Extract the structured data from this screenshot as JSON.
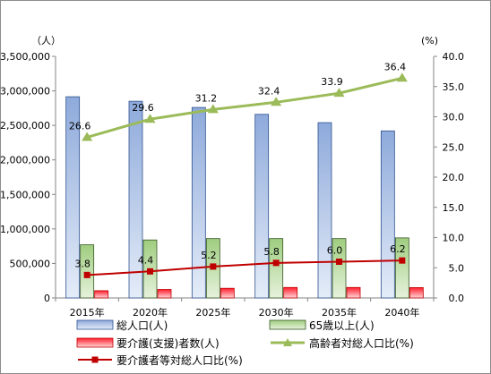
{
  "chart_data": {
    "type": "bar",
    "left_axis_unit": "（人）",
    "right_axis_unit": "(%)",
    "categories": [
      "2015年",
      "2020年",
      "2025年",
      "2030年",
      "2035年",
      "2040年"
    ],
    "left_axis": {
      "ylim": [
        0,
        3500000
      ],
      "ticks": [
        0,
        500000,
        1000000,
        1500000,
        2000000,
        2500000,
        3000000,
        3500000
      ],
      "tick_labels": [
        "0",
        "500,000",
        "1,000,000",
        "1,500,000",
        "2,000,000",
        "2,500,000",
        "3,000,000",
        "3,500,000"
      ]
    },
    "right_axis": {
      "ylim": [
        0,
        40
      ],
      "ticks": [
        0,
        5,
        10,
        15,
        20,
        25,
        30,
        35,
        40
      ],
      "tick_labels": [
        "0.0",
        "5.0",
        "10.0",
        "15.0",
        "20.0",
        "25.0",
        "30.0",
        "35.0",
        "40.0"
      ]
    },
    "grid": false,
    "legend_position": "bottom",
    "series": [
      {
        "name": "総人口(人)",
        "kind": "bar",
        "axis": "left",
        "color": "#8faadc",
        "values": [
          2915000,
          2850000,
          2760000,
          2660000,
          2540000,
          2420000
        ]
      },
      {
        "name": "65歳以上(人)",
        "kind": "bar",
        "axis": "left",
        "color": "#a9d18e",
        "values": [
          770000,
          840000,
          860000,
          860000,
          860000,
          870000
        ]
      },
      {
        "name": "要介護(支援)者数(人)",
        "kind": "bar",
        "axis": "left",
        "color": "#ff7c80",
        "values": [
          105000,
          123000,
          140000,
          152000,
          152000,
          150000
        ]
      },
      {
        "name": "高齢者対総人口比(%)",
        "kind": "line",
        "axis": "right",
        "color": "#9bbb59",
        "marker": "triangle",
        "values": [
          26.6,
          29.6,
          31.2,
          32.4,
          33.9,
          36.4
        ],
        "labels": [
          "26.6",
          "29.6",
          "31.2",
          "32.4",
          "33.9",
          "36.4"
        ]
      },
      {
        "name": "要介護者等対総人口比(%)",
        "kind": "line",
        "axis": "right",
        "color": "#c00000",
        "marker": "square",
        "values": [
          3.8,
          4.4,
          5.2,
          5.8,
          6.0,
          6.2
        ],
        "labels": [
          "3.8",
          "4.4",
          "5.2",
          "5.8",
          "6.0",
          "6.2"
        ]
      }
    ]
  }
}
